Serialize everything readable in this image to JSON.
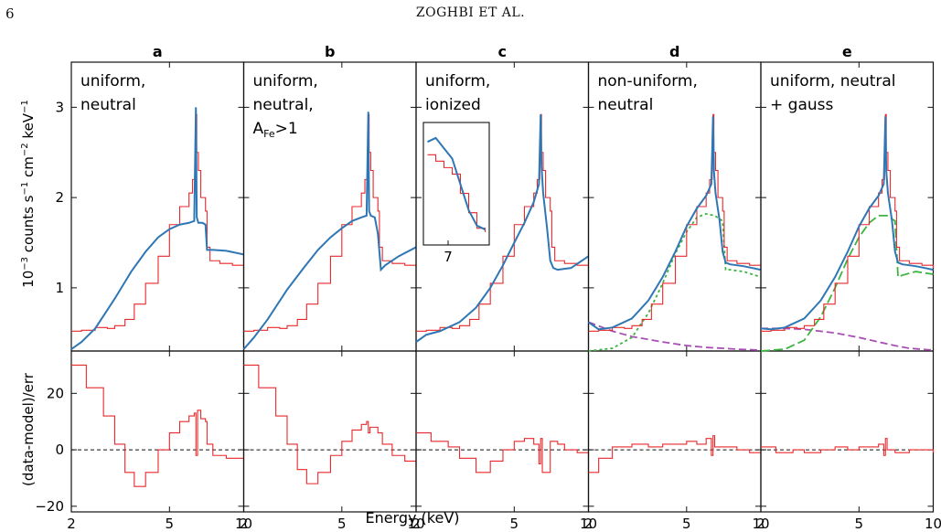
{
  "page": {
    "number": "6",
    "running_head": "ZOGHBI ET AL."
  },
  "colors": {
    "data": "#e8282b",
    "model": "#2f77b4",
    "green": "#3cb440",
    "purple": "#a84fb4",
    "axis": "#111111",
    "zero_line": "#111111"
  },
  "chart_data": {
    "type": "line",
    "xlabel": "Energy (keV)",
    "xscale": "log",
    "xlim": [
      2,
      10
    ],
    "xticks": [
      2,
      5,
      10
    ],
    "xtick_labels": [
      "2",
      "5",
      "10"
    ],
    "top": {
      "ylabel": "10−3 counts s−1 cm−2 keV−1",
      "ylim": [
        0.3,
        3.5
      ],
      "yticks": [
        1,
        2,
        3
      ],
      "ytick_labels": [
        "1",
        "2",
        "3"
      ]
    },
    "bottom": {
      "ylabel": "(data-model)/err",
      "ylim": [
        -22,
        35
      ],
      "yticks": [
        -20,
        0,
        20
      ],
      "ytick_labels": [
        "−20",
        "0",
        "20"
      ],
      "zero_line": "dashed"
    },
    "data_x": [
      2.0,
      2.2,
      2.5,
      2.8,
      3.0,
      3.3,
      3.6,
      4.0,
      4.5,
      5.0,
      5.5,
      6.0,
      6.2,
      6.35,
      6.4,
      6.45,
      6.55,
      6.7,
      7.0,
      7.1,
      7.3,
      8.0,
      9.0,
      10.0
    ],
    "data_y": [
      0.52,
      0.53,
      0.56,
      0.55,
      0.58,
      0.65,
      0.82,
      1.05,
      1.35,
      1.7,
      1.9,
      2.05,
      2.2,
      2.45,
      2.92,
      2.5,
      2.3,
      2.0,
      1.85,
      1.45,
      1.3,
      1.27,
      1.25,
      1.22
    ],
    "panels": [
      {
        "letter": "a",
        "annotation": [
          "uniform,",
          "neutral"
        ],
        "model_x": [
          2.0,
          2.2,
          2.5,
          3.0,
          3.5,
          4.0,
          4.5,
          5.0,
          5.5,
          6.0,
          6.3,
          6.4,
          6.45,
          6.55,
          6.8,
          7.0,
          7.1,
          7.5,
          8.5,
          10.0
        ],
        "model_y": [
          0.32,
          0.4,
          0.55,
          0.88,
          1.18,
          1.4,
          1.56,
          1.65,
          1.7,
          1.72,
          1.74,
          3.0,
          1.78,
          1.72,
          1.72,
          1.7,
          1.42,
          1.42,
          1.41,
          1.37
        ],
        "resid_x": [
          2.0,
          2.3,
          2.7,
          3.0,
          3.3,
          3.6,
          4.0,
          4.5,
          5.0,
          5.5,
          6.0,
          6.3,
          6.4,
          6.5,
          6.7,
          7.0,
          7.1,
          7.5,
          8.5,
          10.0
        ],
        "resid_y": [
          30,
          22,
          12,
          2,
          -8,
          -13,
          -8,
          0,
          6,
          10,
          12,
          13,
          -2,
          14,
          11,
          10,
          2,
          -2,
          -3,
          -4
        ]
      },
      {
        "letter": "b",
        "annotation": [
          "uniform,",
          "neutral,",
          "AFe>1"
        ],
        "model_x": [
          2.0,
          2.2,
          2.5,
          3.0,
          3.5,
          4.0,
          4.5,
          5.0,
          5.5,
          6.0,
          6.3,
          6.4,
          6.45,
          6.55,
          6.8,
          7.0,
          7.2,
          7.5,
          8.5,
          10.0
        ],
        "model_y": [
          0.32,
          0.45,
          0.65,
          0.98,
          1.22,
          1.42,
          1.56,
          1.66,
          1.74,
          1.78,
          1.8,
          2.95,
          1.85,
          1.8,
          1.78,
          1.6,
          1.2,
          1.25,
          1.35,
          1.45
        ],
        "resid_x": [
          2.0,
          2.3,
          2.7,
          3.0,
          3.3,
          3.6,
          4.0,
          4.5,
          5.0,
          5.5,
          6.0,
          6.3,
          6.4,
          6.5,
          7.0,
          7.3,
          8.0,
          9.0,
          10.0
        ],
        "resid_y": [
          30,
          22,
          12,
          2,
          -7,
          -12,
          -8,
          -2,
          3,
          7,
          9,
          10,
          6,
          8,
          6,
          2,
          -2,
          -4,
          -6
        ]
      },
      {
        "letter": "c",
        "annotation": [
          "uniform,",
          "ionized"
        ],
        "inset_tick": "7",
        "model_x": [
          2.0,
          2.2,
          2.5,
          3.0,
          3.5,
          4.0,
          4.5,
          5.0,
          5.5,
          6.0,
          6.3,
          6.4,
          6.45,
          6.55,
          6.8,
          7.0,
          7.2,
          7.5,
          8.5,
          10.0
        ],
        "model_y": [
          0.4,
          0.48,
          0.52,
          0.62,
          0.78,
          1.0,
          1.25,
          1.5,
          1.72,
          1.95,
          2.15,
          2.92,
          2.35,
          2.05,
          1.65,
          1.3,
          1.22,
          1.2,
          1.22,
          1.35
        ],
        "resid_x": [
          2.0,
          2.3,
          2.7,
          3.0,
          3.5,
          4.0,
          4.5,
          5.0,
          5.5,
          6.0,
          6.3,
          6.4,
          6.5,
          7.0,
          7.5,
          8.0,
          9.0,
          10.0
        ],
        "resid_y": [
          6,
          3,
          1,
          -3,
          -8,
          -4,
          0,
          3,
          4,
          2,
          -5,
          4,
          -8,
          3,
          2,
          0,
          -1,
          -2
        ]
      },
      {
        "letter": "d",
        "annotation": [
          "non-uniform,",
          "neutral"
        ],
        "model_x": [
          2.0,
          2.2,
          2.5,
          3.0,
          3.5,
          4.0,
          4.5,
          5.0,
          5.5,
          6.0,
          6.3,
          6.4,
          6.45,
          6.55,
          6.8,
          7.0,
          7.2,
          7.5,
          8.5,
          10.0
        ],
        "model_y": [
          0.62,
          0.54,
          0.56,
          0.66,
          0.86,
          1.12,
          1.4,
          1.68,
          1.88,
          2.02,
          2.15,
          2.9,
          2.3,
          2.05,
          1.75,
          1.4,
          1.28,
          1.26,
          1.24,
          1.2
        ],
        "comp1_x": [
          2.0,
          2.5,
          3.0,
          3.5,
          4.0,
          4.5,
          5.0,
          5.5,
          6.0,
          6.5,
          7.0,
          7.2,
          7.5,
          8.5,
          10.0
        ],
        "comp1_y": [
          0.3,
          0.33,
          0.45,
          0.72,
          1.05,
          1.38,
          1.62,
          1.78,
          1.82,
          1.8,
          1.74,
          1.2,
          1.2,
          1.18,
          1.12
        ],
        "comp2_x": [
          2.0,
          2.5,
          3.0,
          4.0,
          5.0,
          6.0,
          7.0,
          8.0,
          10.0
        ],
        "comp2_y": [
          0.62,
          0.52,
          0.46,
          0.4,
          0.36,
          0.34,
          0.33,
          0.32,
          0.31
        ],
        "resid_x": [
          2.0,
          2.2,
          2.5,
          3.0,
          3.5,
          4.0,
          4.5,
          5.0,
          5.5,
          6.0,
          6.3,
          6.4,
          6.5,
          7.0,
          8.0,
          9.0,
          10.0
        ],
        "resid_y": [
          -8,
          -3,
          1,
          2,
          1,
          2,
          2,
          3,
          2,
          4,
          -2,
          5,
          1,
          1,
          0,
          -1,
          -1
        ]
      },
      {
        "letter": "e",
        "annotation": [
          "uniform, neutral",
          "+ gauss"
        ],
        "model_x": [
          2.0,
          2.2,
          2.5,
          3.0,
          3.5,
          4.0,
          4.5,
          5.0,
          5.5,
          6.0,
          6.3,
          6.4,
          6.45,
          6.55,
          6.8,
          7.0,
          7.2,
          7.5,
          8.5,
          10.0
        ],
        "model_y": [
          0.55,
          0.54,
          0.56,
          0.66,
          0.86,
          1.12,
          1.4,
          1.68,
          1.88,
          2.02,
          2.15,
          2.9,
          2.3,
          2.05,
          1.75,
          1.4,
          1.28,
          1.26,
          1.24,
          1.2
        ],
        "comp1_x": [
          2.0,
          2.5,
          3.0,
          3.5,
          4.0,
          4.5,
          5.0,
          5.5,
          6.0,
          6.5,
          7.0,
          7.2,
          7.5,
          8.5,
          10.0
        ],
        "comp1_y": [
          0.3,
          0.32,
          0.42,
          0.68,
          1.0,
          1.32,
          1.56,
          1.72,
          1.8,
          1.8,
          1.74,
          1.12,
          1.14,
          1.18,
          1.15
        ],
        "comp2_x": [
          2.0,
          2.5,
          3.0,
          4.0,
          5.0,
          6.0,
          7.0,
          8.0,
          10.0
        ],
        "comp2_y": [
          0.55,
          0.55,
          0.54,
          0.5,
          0.45,
          0.4,
          0.36,
          0.33,
          0.31
        ],
        "resid_x": [
          2.0,
          2.3,
          2.7,
          3.0,
          3.5,
          4.0,
          4.5,
          5.0,
          5.5,
          6.0,
          6.3,
          6.4,
          6.5,
          7.0,
          8.0,
          9.0,
          10.0
        ],
        "resid_y": [
          1,
          -1,
          0,
          -1,
          0,
          1,
          0,
          1,
          1,
          2,
          -2,
          4,
          0,
          -1,
          0,
          0,
          -1
        ]
      }
    ],
    "inset_data_x": [
      6.75,
      6.85,
      6.95,
      7.05,
      7.15,
      7.25,
      7.35,
      7.45
    ],
    "inset_data_y": [
      1.85,
      1.8,
      1.75,
      1.7,
      1.55,
      1.4,
      1.28,
      1.25
    ],
    "inset_model_x": [
      6.75,
      6.85,
      6.95,
      7.05,
      7.15,
      7.25,
      7.35,
      7.45
    ],
    "inset_model_y": [
      1.95,
      1.98,
      1.9,
      1.82,
      1.62,
      1.42,
      1.3,
      1.27
    ]
  }
}
